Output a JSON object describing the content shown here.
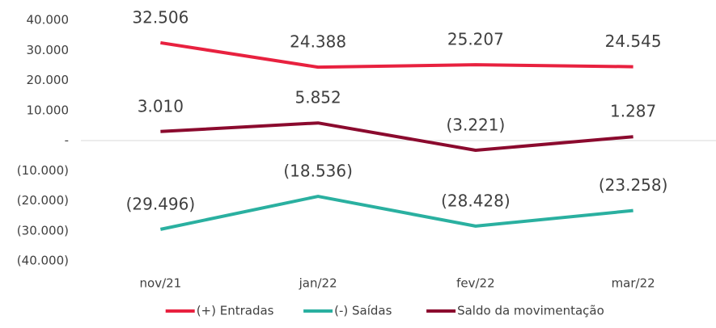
{
  "chart_data": {
    "type": "line",
    "categories": [
      "nov/21",
      "jan/22",
      "fev/22",
      "mar/22"
    ],
    "series": [
      {
        "name": "(+) Entradas",
        "color": "#e8213f",
        "values": [
          32506,
          24388,
          25207,
          24545
        ],
        "value_labels": [
          "32.506",
          "24.388",
          "25.207",
          "24.545"
        ]
      },
      {
        "name": "(-) Saídas",
        "color": "#2ab0a0",
        "values": [
          -29496,
          -18536,
          -28428,
          -23258
        ],
        "value_labels": [
          "(29.496)",
          "(18.536)",
          "(28.428)",
          "(23.258)"
        ]
      },
      {
        "name": "Saldo da movimentação",
        "color": "#8b0a2e",
        "values": [
          3010,
          5852,
          -3221,
          1287
        ],
        "value_labels": [
          "3.010",
          "5.852",
          "(3.221)",
          "1.287"
        ]
      }
    ],
    "ylim": [
      -40000,
      40000
    ],
    "yticks": [
      {
        "value": 40000,
        "label": "40.000"
      },
      {
        "value": 30000,
        "label": "30.000"
      },
      {
        "value": 20000,
        "label": "20.000"
      },
      {
        "value": 10000,
        "label": "10.000"
      },
      {
        "value": 0,
        "label": "-"
      },
      {
        "value": -10000,
        "label": "(10.000)"
      },
      {
        "value": -20000,
        "label": "(20.000)"
      },
      {
        "value": -30000,
        "label": "(30.000)"
      },
      {
        "value": -40000,
        "label": "(40.000)"
      }
    ],
    "grid": false,
    "legend": "bottom"
  }
}
